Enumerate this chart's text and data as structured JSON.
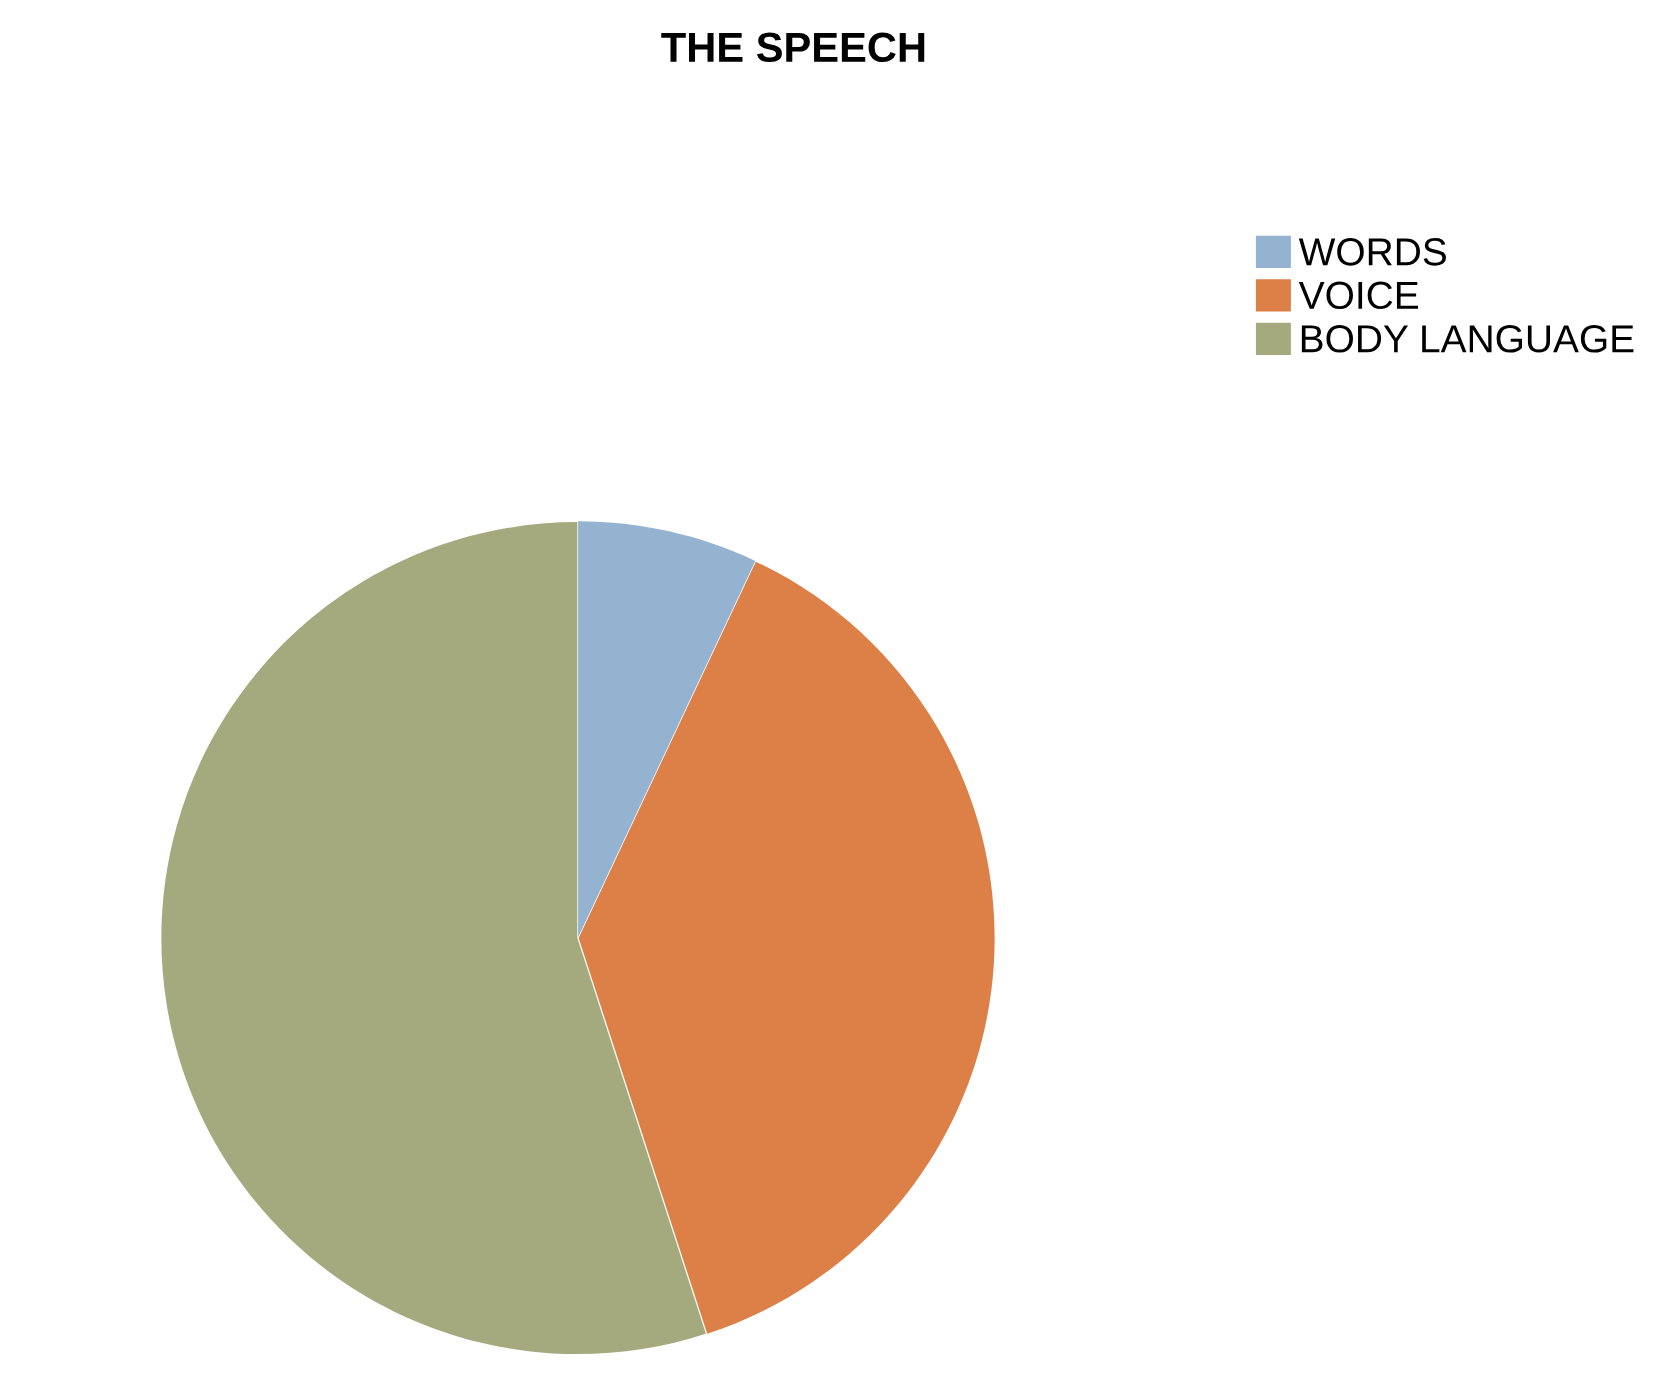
{
  "chart_data": {
    "type": "pie",
    "title": "THE SPEECH",
    "categories": [
      "WORDS",
      "VOICE",
      "BODY LANGUAGE"
    ],
    "values": [
      7,
      38,
      55
    ],
    "colors": [
      "#93b3d0",
      "#dd8048",
      "#a4aa7e"
    ],
    "legend": "top right"
  }
}
